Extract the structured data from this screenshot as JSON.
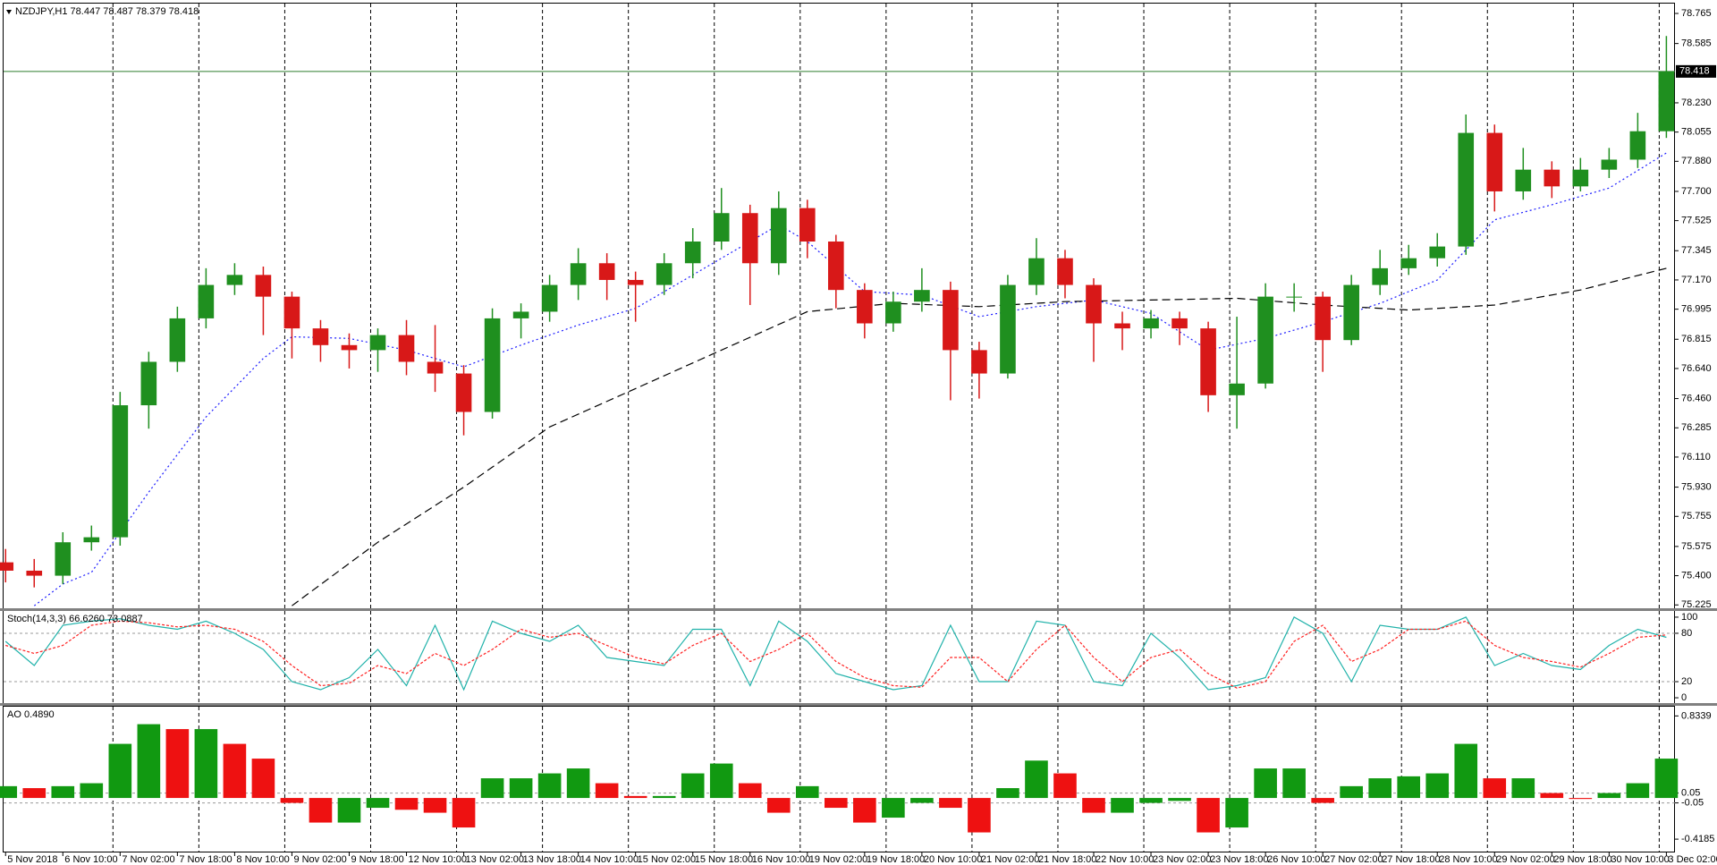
{
  "chart_data": [
    {
      "type": "candlestick",
      "title": "NZDJPY,H1  78.447 78.487 78.379 78.418",
      "open": [
        75.48,
        75.43,
        75.4,
        75.6,
        75.63,
        76.42,
        76.68,
        76.94,
        77.14,
        77.2,
        77.07,
        76.88,
        76.78,
        76.75,
        76.84,
        76.68,
        76.61,
        76.38,
        76.94,
        76.98,
        77.14,
        77.27,
        77.17,
        77.14,
        77.27,
        77.4,
        77.57,
        77.27,
        77.6,
        77.4,
        77.11,
        76.91,
        77.04,
        77.11,
        76.75,
        76.61,
        77.14,
        77.3,
        77.14,
        76.91,
        76.88,
        76.94,
        76.88,
        76.48,
        76.55,
        77.07,
        77.07,
        76.81,
        77.14,
        77.24,
        77.3,
        77.37,
        78.05,
        77.7,
        77.83,
        77.73,
        77.83,
        77.89,
        78.06
      ],
      "high": [
        75.56,
        75.5,
        75.66,
        75.7,
        76.5,
        76.74,
        77.01,
        77.24,
        77.27,
        77.25,
        77.1,
        76.93,
        76.85,
        76.88,
        76.93,
        76.9,
        76.66,
        77.0,
        77.03,
        77.2,
        77.36,
        77.33,
        77.22,
        77.33,
        77.48,
        77.72,
        77.62,
        77.7,
        77.65,
        77.44,
        77.15,
        77.1,
        77.24,
        77.16,
        76.8,
        77.2,
        77.42,
        77.35,
        77.18,
        76.98,
        76.99,
        76.98,
        76.92,
        76.95,
        77.15,
        77.15,
        77.1,
        77.2,
        77.35,
        77.38,
        77.45,
        78.16,
        78.1,
        77.96,
        77.88,
        77.9,
        77.96,
        78.17,
        78.63
      ],
      "low": [
        75.36,
        75.33,
        75.35,
        75.55,
        75.58,
        76.28,
        76.62,
        76.88,
        77.08,
        76.84,
        76.7,
        76.68,
        76.64,
        76.62,
        76.6,
        76.5,
        76.24,
        76.34,
        76.82,
        76.92,
        77.05,
        77.05,
        76.92,
        77.08,
        77.18,
        77.35,
        77.02,
        77.2,
        77.3,
        77.0,
        76.82,
        76.86,
        76.98,
        76.45,
        76.46,
        76.58,
        77.08,
        77.06,
        76.68,
        76.75,
        76.82,
        76.78,
        76.38,
        76.28,
        76.52,
        76.98,
        76.62,
        76.78,
        77.08,
        77.2,
        77.25,
        77.32,
        77.58,
        77.65,
        77.66,
        77.7,
        77.78,
        77.84,
        78.02
      ],
      "close": [
        75.43,
        75.4,
        75.6,
        75.63,
        76.42,
        76.68,
        76.94,
        77.14,
        77.2,
        77.07,
        76.88,
        76.78,
        76.75,
        76.84,
        76.68,
        76.61,
        76.38,
        76.94,
        76.98,
        77.14,
        77.27,
        77.17,
        77.14,
        77.27,
        77.4,
        77.57,
        77.27,
        77.6,
        77.4,
        77.11,
        76.91,
        77.04,
        77.11,
        76.75,
        76.61,
        77.14,
        77.3,
        77.14,
        76.91,
        76.88,
        76.94,
        76.88,
        76.48,
        76.55,
        77.07,
        77.07,
        76.81,
        77.14,
        77.24,
        77.3,
        77.37,
        78.05,
        77.7,
        77.83,
        77.73,
        77.83,
        77.89,
        78.06,
        78.418
      ],
      "up_color": "#1f8f1f",
      "down_color": "#d81818",
      "overlays": [
        {
          "color": "#1c1cff",
          "dash": "2,3",
          "x": [
            1,
            2,
            3,
            5,
            7,
            9,
            10,
            12,
            14,
            16,
            18,
            20,
            22,
            24,
            27,
            28,
            30,
            32,
            34,
            36,
            38,
            40,
            42,
            44,
            46,
            48,
            50,
            52,
            54,
            56,
            58
          ],
          "values": [
            75.22,
            75.35,
            75.42,
            75.9,
            76.35,
            76.7,
            76.83,
            76.82,
            76.75,
            76.65,
            76.78,
            76.9,
            77.0,
            77.2,
            77.5,
            77.4,
            77.1,
            77.08,
            76.95,
            77.01,
            77.05,
            76.97,
            76.75,
            76.82,
            76.92,
            77.03,
            77.17,
            77.53,
            77.62,
            77.72,
            77.93
          ]
        },
        {
          "color": "#000000",
          "dash": "9,5",
          "x": [
            10,
            13,
            16,
            19,
            22,
            25,
            28,
            31,
            34,
            37,
            40,
            43,
            46,
            49,
            52,
            55,
            58
          ],
          "values": [
            75.22,
            75.6,
            75.93,
            76.29,
            76.52,
            76.75,
            76.98,
            77.03,
            77.01,
            77.04,
            77.05,
            77.06,
            77.02,
            76.99,
            77.02,
            77.11,
            77.24
          ]
        }
      ],
      "last_price": 78.418,
      "last_price_color": "#2e7d2e",
      "xlim": [
        -0.07,
        58.3
      ],
      "ylim": [
        75.205,
        78.824
      ],
      "yticks": [
        78.765,
        78.585,
        {
          "value": 78.23,
          "label": "78.230"
        },
        78.055,
        {
          "value": 77.88,
          "label": "77.880"
        },
        {
          "value": 77.7,
          "label": "77.700"
        },
        77.525,
        77.345,
        {
          "value": 77.17,
          "label": "77.170"
        },
        76.995,
        76.815,
        {
          "value": 76.64,
          "label": "76.640"
        },
        {
          "value": 76.46,
          "label": "76.460"
        },
        76.285,
        {
          "value": 76.11,
          "label": "76.110"
        },
        {
          "value": 75.93,
          "label": "75.930"
        },
        75.755,
        75.575,
        {
          "value": 75.4,
          "label": "75.400"
        },
        75.225
      ],
      "xticks": [
        {
          "value": 0,
          "label": "5 Nov 2018"
        },
        {
          "value": 2,
          "label": "6 Nov 10:00"
        },
        {
          "value": 4,
          "label": "7 Nov 02:00"
        },
        {
          "value": 6,
          "label": "7 Nov 18:00"
        },
        {
          "value": 8,
          "label": "8 Nov 10:00"
        },
        {
          "value": 10,
          "label": "9 Nov 02:00"
        },
        {
          "value": 12,
          "label": "9 Nov 18:00"
        },
        {
          "value": 14,
          "label": "12 Nov 10:00"
        },
        {
          "value": 16,
          "label": "13 Nov 02:00"
        },
        {
          "value": 18,
          "label": "13 Nov 18:00"
        },
        {
          "value": 20,
          "label": "14 Nov 10:00"
        },
        {
          "value": 22,
          "label": "15 Nov 02:00"
        },
        {
          "value": 24,
          "label": "15 Nov 18:00"
        },
        {
          "value": 26,
          "label": "16 Nov 10:00"
        },
        {
          "value": 28,
          "label": "19 Nov 02:00"
        },
        {
          "value": 30,
          "label": "19 Nov 18:00"
        },
        {
          "value": 32,
          "label": "20 Nov 10:00"
        },
        {
          "value": 34,
          "label": "21 Nov 02:00"
        },
        {
          "value": 36,
          "label": "21 Nov 18:00"
        },
        {
          "value": 38,
          "label": "22 Nov 10:00"
        },
        {
          "value": 40,
          "label": "23 Nov 02:00"
        },
        {
          "value": 42,
          "label": "23 Nov 18:00"
        },
        {
          "value": 44,
          "label": "26 Nov 10:00"
        },
        {
          "value": 46,
          "label": "27 Nov 02:00"
        },
        {
          "value": 48,
          "label": "27 Nov 18:00"
        },
        {
          "value": 50,
          "label": "28 Nov 10:00"
        },
        {
          "value": 52,
          "label": "29 Nov 02:00"
        },
        {
          "value": 54,
          "label": "29 Nov 18:00"
        },
        {
          "value": 56,
          "label": "30 Nov 10:00"
        },
        {
          "value": 58,
          "label": "3 Dec 02:00"
        }
      ],
      "separators": [
        3.75,
        6.75,
        9.75,
        12.75,
        15.75,
        18.75,
        21.75,
        24.75,
        27.75,
        30.75,
        33.75,
        36.75,
        39.75,
        42.75,
        45.75,
        48.75,
        51.75,
        54.75,
        57.75
      ]
    },
    {
      "type": "line",
      "title": "Stoch(14,3,3) 66.6260 73.0887",
      "series": [
        {
          "color": "#20b2aa",
          "dash": "none",
          "values": [
            70,
            40,
            90,
            95,
            98,
            90,
            85,
            95,
            80,
            60,
            20,
            10,
            25,
            60,
            15,
            90,
            10,
            95,
            80,
            70,
            90,
            50,
            45,
            40,
            85,
            85,
            15,
            95,
            70,
            30,
            20,
            10,
            15,
            90,
            20,
            20,
            95,
            90,
            20,
            15,
            80,
            50,
            10,
            15,
            25,
            100,
            80,
            20,
            90,
            85,
            85,
            100,
            40,
            55,
            40,
            35,
            65,
            85,
            75
          ]
        },
        {
          "color": "#ff2020",
          "dash": "3,2",
          "values": [
            65,
            55,
            65,
            90,
            95,
            93,
            88,
            90,
            85,
            70,
            40,
            15,
            18,
            40,
            30,
            55,
            40,
            60,
            85,
            75,
            80,
            65,
            50,
            42,
            65,
            80,
            45,
            60,
            80,
            45,
            25,
            15,
            13,
            50,
            50,
            20,
            60,
            90,
            50,
            20,
            50,
            60,
            30,
            12,
            20,
            70,
            90,
            45,
            60,
            85,
            85,
            95,
            65,
            50,
            45,
            38,
            55,
            75,
            78
          ]
        }
      ],
      "xlim": [
        -0.07,
        58.3
      ],
      "ylim": [
        -6.6,
        107.7
      ],
      "yticks": [
        100,
        80,
        20,
        0
      ],
      "levels": [
        80,
        20
      ]
    },
    {
      "type": "bar",
      "title": "AO 0.4890",
      "values": [
        0.12,
        0.1,
        0.12,
        0.15,
        0.55,
        0.75,
        0.7,
        0.7,
        0.55,
        0.4,
        -0.05,
        -0.25,
        -0.25,
        -0.1,
        -0.12,
        -0.15,
        -0.3,
        0.2,
        0.2,
        0.25,
        0.3,
        0.15,
        0.02,
        0.02,
        0.25,
        0.35,
        0.15,
        -0.15,
        0.12,
        -0.1,
        -0.25,
        -0.2,
        -0.05,
        -0.1,
        -0.35,
        0.1,
        0.38,
        0.25,
        -0.15,
        -0.15,
        -0.05,
        -0.03,
        -0.35,
        -0.3,
        0.3,
        0.3,
        -0.05,
        0.12,
        0.2,
        0.22,
        0.25,
        0.55,
        0.2,
        0.2,
        0.05,
        -0.01,
        0.05,
        0.15,
        0.4
      ],
      "up_color": "#119911",
      "down_color": "#ee1111",
      "xlim": [
        -0.07,
        58.3
      ],
      "ylim": [
        -0.554,
        0.928
      ],
      "yticks": [
        0.8339,
        0.05,
        -0.05,
        -0.4185
      ],
      "levels": [
        0.05,
        -0.05
      ]
    }
  ]
}
